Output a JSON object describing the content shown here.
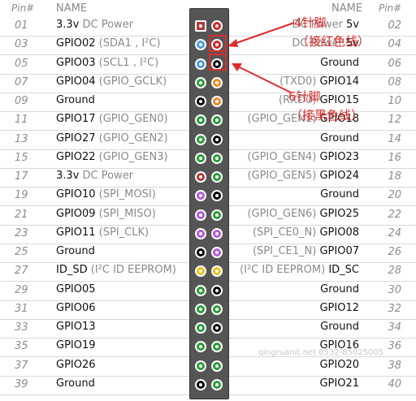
{
  "header": {
    "pin_left": "Pin#",
    "name_left": "NAME",
    "name_right": "NAME",
    "pin_right": "Pin#"
  },
  "rows": [
    {
      "l_num": "01",
      "l_main": "3.3v",
      "l_sub": " DC Power",
      "l_color": "#b03a3a",
      "r_color": "#d4282b",
      "r_main": " 5v",
      "r_sub": "DC Power",
      "r_num": "02"
    },
    {
      "l_num": "03",
      "l_main": "GPIO02",
      "l_sub": " (SDA1 , I²C)",
      "l_color": "#4f9ad8",
      "r_color": "#d4282b",
      "r_main": " 5v",
      "r_sub": "DC Power",
      "r_num": "04"
    },
    {
      "l_num": "05",
      "l_main": "GPIO03",
      "l_sub": " (SCL1 , I²C)",
      "l_color": "#4f9ad8",
      "r_color": "#000000",
      "r_main": "Ground",
      "r_sub": "",
      "r_num": "06"
    },
    {
      "l_num": "07",
      "l_main": "GPIO04",
      "l_sub": " (GPIO_GCLK)",
      "l_color": "#2a9d3a",
      "r_color": "#ee8a2b",
      "r_main": " GPIO14",
      "r_sub": "(TXD0)",
      "r_num": "08"
    },
    {
      "l_num": "09",
      "l_main": "Ground",
      "l_sub": "",
      "l_color": "#000000",
      "r_color": "#ee8a2b",
      "r_main": " GPIO15",
      "r_sub": "(RXD0)",
      "r_num": "10"
    },
    {
      "l_num": "11",
      "l_main": "GPIO17",
      "l_sub": " (GPIO_GEN0)",
      "l_color": "#2a9d3a",
      "r_color": "#2a9d3a",
      "r_main": " GPIO18",
      "r_sub": "(GPIO_GEN1)",
      "r_num": "12"
    },
    {
      "l_num": "13",
      "l_main": "GPIO27",
      "l_sub": " (GPIO_GEN2)",
      "l_color": "#2a9d3a",
      "r_color": "#000000",
      "r_main": "Ground",
      "r_sub": "",
      "r_num": "14"
    },
    {
      "l_num": "15",
      "l_main": "GPIO22",
      "l_sub": " (GPIO_GEN3)",
      "l_color": "#2a9d3a",
      "r_color": "#2a9d3a",
      "r_main": " GPIO23",
      "r_sub": "(GPIO_GEN4)",
      "r_num": "16"
    },
    {
      "l_num": "17",
      "l_main": "3.3v",
      "l_sub": " DC Power",
      "l_color": "#b03a3a",
      "r_color": "#2a9d3a",
      "r_main": " GPIO24",
      "r_sub": "(GPIO_GEN5)",
      "r_num": "18"
    },
    {
      "l_num": "19",
      "l_main": "GPIO10",
      "l_sub": " (SPI_MOSI)",
      "l_color": "#b45ad8",
      "r_color": "#000000",
      "r_main": "Ground",
      "r_sub": "",
      "r_num": "20"
    },
    {
      "l_num": "21",
      "l_main": "GPIO09",
      "l_sub": " (SPI_MISO)",
      "l_color": "#b45ad8",
      "r_color": "#2a9d3a",
      "r_main": " GPIO25",
      "r_sub": "(GPIO_GEN6)",
      "r_num": "22"
    },
    {
      "l_num": "23",
      "l_main": "GPIO11",
      "l_sub": " (SPI_CLK)",
      "l_color": "#b45ad8",
      "r_color": "#b45ad8",
      "r_main": " GPIO08",
      "r_sub": "(SPI_CE0_N)",
      "r_num": "24"
    },
    {
      "l_num": "25",
      "l_main": "Ground",
      "l_sub": "",
      "l_color": "#000000",
      "r_color": "#b45ad8",
      "r_main": " GPIO07",
      "r_sub": "(SPI_CE1_N)",
      "r_num": "26"
    },
    {
      "l_num": "27",
      "l_main": "ID_SD",
      "l_sub": " (I²C ID EEPROM)",
      "l_color": "#e8c21a",
      "r_color": "#e8c21a",
      "r_main": " ID_SC",
      "r_sub": "(I²C ID EEPROM)",
      "r_num": "28"
    },
    {
      "l_num": "29",
      "l_main": "GPIO05",
      "l_sub": "",
      "l_color": "#2a9d3a",
      "r_color": "#000000",
      "r_main": "Ground",
      "r_sub": "",
      "r_num": "30"
    },
    {
      "l_num": "31",
      "l_main": "GPIO06",
      "l_sub": "",
      "l_color": "#2a9d3a",
      "r_color": "#2a9d3a",
      "r_main": "GPIO12",
      "r_sub": "",
      "r_num": "32"
    },
    {
      "l_num": "33",
      "l_main": "GPIO13",
      "l_sub": "",
      "l_color": "#2a9d3a",
      "r_color": "#000000",
      "r_main": "Ground",
      "r_sub": "",
      "r_num": "34"
    },
    {
      "l_num": "35",
      "l_main": "GPIO19",
      "l_sub": "",
      "l_color": "#2a9d3a",
      "r_color": "#2a9d3a",
      "r_main": "GPIO16",
      "r_sub": "",
      "r_num": "36"
    },
    {
      "l_num": "37",
      "l_main": "GPIO26",
      "l_sub": "",
      "l_color": "#2a9d3a",
      "r_color": "#2a9d3a",
      "r_main": "GPIO20",
      "r_sub": "",
      "r_num": "38"
    },
    {
      "l_num": "39",
      "l_main": "Ground",
      "l_sub": "",
      "l_color": "#000000",
      "r_color": "#2a9d3a",
      "r_main": "GPIO21",
      "r_sub": "",
      "r_num": "40"
    }
  ],
  "annotations": {
    "pin4_label": "4针脚",
    "pin4_note": "（接红色线）",
    "pin6_label": "6针脚",
    "pin6_note": "（接黑色线）",
    "color": "#e02a2a"
  },
  "watermark": "qingruanit.net 0532-85025005"
}
